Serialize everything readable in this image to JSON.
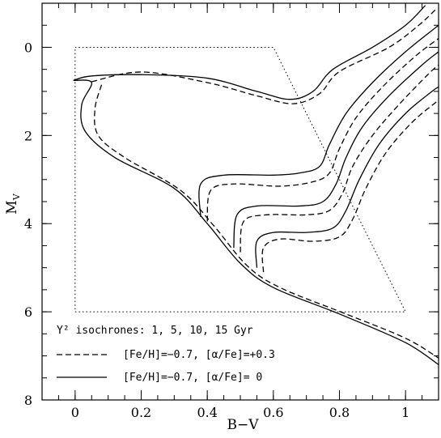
{
  "chart_data": {
    "type": "line",
    "xlabel": "B−V",
    "ylabel_main": "M",
    "ylabel_sub": "V",
    "xlim": [
      -0.1,
      1.1
    ],
    "ylim": [
      8,
      -1
    ],
    "y_inverted": true,
    "x_ticks": [
      "0",
      "0.2",
      "0.4",
      "0.6",
      "0.8",
      "1"
    ],
    "x_tick_values": [
      0,
      0.2,
      0.4,
      0.6,
      0.8,
      1.0
    ],
    "y_ticks": [
      "0",
      "2",
      "4",
      "6",
      "8"
    ],
    "y_tick_values": [
      0,
      2,
      4,
      6,
      8
    ],
    "legend": {
      "title": "Y² isochrones: 1, 5, 10, 15 Gyr",
      "entries": [
        {
          "label": "[Fe/H]=−0.7,  [α/Fe]=+0.3",
          "style": "dashed"
        },
        {
          "label": "[Fe/H]=−0.7,  [α/Fe]= 0",
          "style": "solid"
        }
      ]
    },
    "region_box": [
      [
        0.0,
        0.0
      ],
      [
        0.6,
        0.0
      ],
      [
        1.0,
        6.0
      ],
      [
        0.0,
        6.0
      ]
    ],
    "series": [
      {
        "style": "solid",
        "points": [
          [
            -0.005,
            0.75
          ],
          [
            0.05,
            0.65
          ],
          [
            0.2,
            0.62
          ],
          [
            0.4,
            0.7
          ],
          [
            0.55,
            1.0
          ],
          [
            0.65,
            1.18
          ],
          [
            0.72,
            1.0
          ],
          [
            0.78,
            0.5
          ],
          [
            0.9,
            0.0
          ],
          [
            1.0,
            -0.5
          ],
          [
            1.06,
            -0.95
          ]
        ]
      },
      {
        "style": "dashed",
        "points": [
          [
            0.05,
            0.78
          ],
          [
            0.2,
            0.56
          ],
          [
            0.4,
            0.8
          ],
          [
            0.55,
            1.1
          ],
          [
            0.66,
            1.28
          ],
          [
            0.74,
            1.05
          ],
          [
            0.8,
            0.55
          ],
          [
            0.95,
            0.0
          ],
          [
            1.04,
            -0.5
          ],
          [
            1.09,
            -0.85
          ]
        ]
      },
      {
        "style": "solid",
        "points": [
          [
            -0.005,
            0.75
          ],
          [
            0.05,
            0.8
          ],
          [
            0.02,
            1.3
          ],
          [
            0.03,
            1.9
          ],
          [
            0.12,
            2.5
          ],
          [
            0.3,
            3.2
          ],
          [
            0.4,
            4.0
          ],
          [
            0.5,
            4.9
          ],
          [
            0.6,
            5.45
          ],
          [
            0.8,
            6.05
          ],
          [
            1.0,
            6.7
          ],
          [
            1.1,
            7.2
          ]
        ]
      },
      {
        "style": "dashed",
        "points": [
          [
            0.08,
            0.85
          ],
          [
            0.06,
            1.4
          ],
          [
            0.07,
            2.0
          ],
          [
            0.15,
            2.5
          ],
          [
            0.32,
            3.25
          ],
          [
            0.42,
            4.05
          ],
          [
            0.52,
            4.95
          ],
          [
            0.62,
            5.45
          ],
          [
            0.82,
            6.05
          ],
          [
            1.0,
            6.6
          ],
          [
            1.1,
            7.05
          ]
        ]
      },
      {
        "style": "solid",
        "points": [
          [
            0.38,
            3.85
          ],
          [
            0.38,
            3.1
          ],
          [
            0.45,
            2.9
          ],
          [
            0.6,
            2.9
          ],
          [
            0.68,
            2.85
          ],
          [
            0.74,
            2.7
          ],
          [
            0.77,
            2.2
          ],
          [
            0.82,
            1.5
          ],
          [
            0.9,
            0.8
          ],
          [
            1.0,
            0.1
          ],
          [
            1.1,
            -0.5
          ]
        ]
      },
      {
        "style": "dashed",
        "points": [
          [
            0.4,
            3.95
          ],
          [
            0.41,
            3.25
          ],
          [
            0.48,
            3.1
          ],
          [
            0.62,
            3.15
          ],
          [
            0.72,
            3.05
          ],
          [
            0.77,
            2.85
          ],
          [
            0.8,
            2.3
          ],
          [
            0.85,
            1.6
          ],
          [
            0.93,
            0.9
          ],
          [
            1.03,
            0.2
          ],
          [
            1.1,
            -0.2
          ]
        ]
      },
      {
        "style": "solid",
        "points": [
          [
            0.48,
            4.55
          ],
          [
            0.49,
            3.8
          ],
          [
            0.55,
            3.6
          ],
          [
            0.68,
            3.6
          ],
          [
            0.75,
            3.5
          ],
          [
            0.79,
            3.1
          ],
          [
            0.82,
            2.5
          ],
          [
            0.87,
            1.8
          ],
          [
            0.95,
            1.1
          ],
          [
            1.05,
            0.4
          ],
          [
            1.1,
            0.1
          ]
        ]
      },
      {
        "style": "dashed",
        "points": [
          [
            0.5,
            4.65
          ],
          [
            0.51,
            3.95
          ],
          [
            0.58,
            3.8
          ],
          [
            0.7,
            3.8
          ],
          [
            0.77,
            3.7
          ],
          [
            0.81,
            3.3
          ],
          [
            0.84,
            2.7
          ],
          [
            0.9,
            2.0
          ],
          [
            0.98,
            1.3
          ],
          [
            1.07,
            0.6
          ],
          [
            1.1,
            0.4
          ]
        ]
      },
      {
        "style": "solid",
        "points": [
          [
            0.55,
            5.0
          ],
          [
            0.55,
            4.4
          ],
          [
            0.6,
            4.2
          ],
          [
            0.7,
            4.2
          ],
          [
            0.78,
            4.1
          ],
          [
            0.82,
            3.7
          ],
          [
            0.86,
            3.0
          ],
          [
            0.92,
            2.2
          ],
          [
            1.0,
            1.5
          ],
          [
            1.08,
            1.0
          ],
          [
            1.1,
            0.9
          ]
        ]
      },
      {
        "style": "dashed",
        "points": [
          [
            0.57,
            5.1
          ],
          [
            0.57,
            4.55
          ],
          [
            0.62,
            4.35
          ],
          [
            0.72,
            4.4
          ],
          [
            0.8,
            4.3
          ],
          [
            0.84,
            3.9
          ],
          [
            0.88,
            3.2
          ],
          [
            0.94,
            2.4
          ],
          [
            1.02,
            1.7
          ],
          [
            1.1,
            1.2
          ]
        ]
      }
    ]
  }
}
